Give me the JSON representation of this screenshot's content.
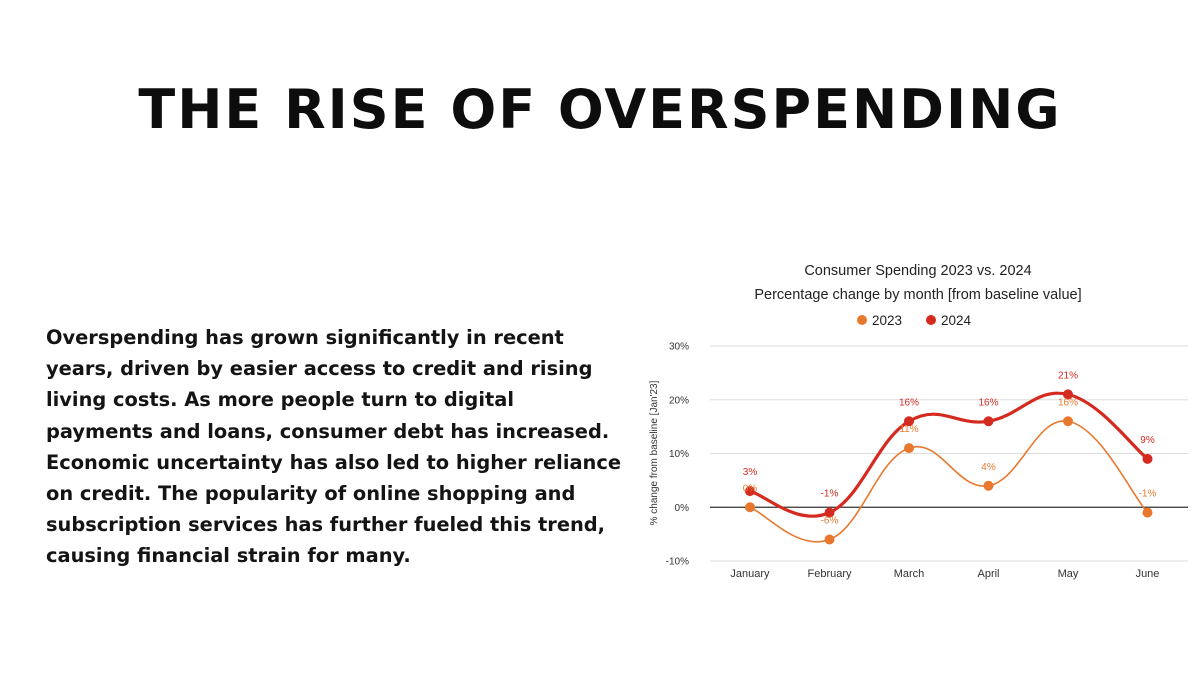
{
  "slide": {
    "title": "THE RISE OF OVERSPENDING",
    "body": "Overspending has grown significantly in recent years, driven by easier access to credit and rising living costs. As more people turn to digital payments and loans, consumer debt has increased. Economic uncertainty has also led to higher reliance on credit. The popularity of online shopping and subscription services has further fueled this trend, causing financial strain for many."
  },
  "chart_data": {
    "type": "line",
    "title": "Consumer Spending 2023 vs. 2024",
    "subtitle": "Percentage change by month [from baseline value]",
    "xlabel": "",
    "ylabel": "% change from baseline [Jan'23]",
    "categories": [
      "January",
      "February",
      "March",
      "April",
      "May",
      "June"
    ],
    "y_ticks": [
      "30%",
      "20%",
      "10%",
      "0%",
      "-10%"
    ],
    "y_tick_values": [
      30,
      20,
      10,
      0,
      -10
    ],
    "ylim": [
      -10,
      30
    ],
    "grid": true,
    "legend_position": "top-center",
    "series": [
      {
        "name": "2023",
        "color": "#e8782e",
        "values": [
          0,
          -6,
          11,
          4,
          16,
          -1
        ],
        "labels": [
          "0%",
          "-6%",
          "11%",
          "4%",
          "16%",
          "-1%"
        ]
      },
      {
        "name": "2024",
        "color": "#d42a20",
        "values": [
          3,
          -1,
          16,
          16,
          21,
          9
        ],
        "labels": [
          "3%",
          "-1%",
          "16%",
          "16%",
          "21%",
          "9%"
        ]
      }
    ]
  }
}
